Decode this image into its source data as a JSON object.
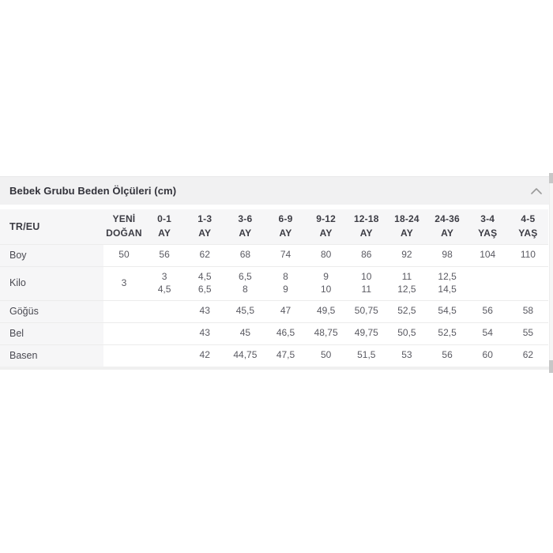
{
  "accordion": {
    "title": "Bebek Grubu Beden Ölçüleri (cm)",
    "state": "expanded",
    "chevron_icon": "chevron-up"
  },
  "table": {
    "corner_label": "TR/EU",
    "columns": [
      "YENİ\nDOĞAN",
      "0-1\nAY",
      "1-3\nAY",
      "3-6\nAY",
      "6-9\nAY",
      "9-12\nAY",
      "12-18\nAY",
      "18-24\nAY",
      "24-36\nAY",
      "3-4\nYAŞ",
      "4-5\nYAŞ"
    ],
    "rows": [
      {
        "label": "Boy",
        "values": [
          "50",
          "56",
          "62",
          "68",
          "74",
          "80",
          "86",
          "92",
          "98",
          "104",
          "110"
        ]
      },
      {
        "label": "Kilo",
        "values": [
          "3",
          "3\n4,5",
          "4,5\n6,5",
          "6,5\n8",
          "8\n9",
          "9\n10",
          "10\n11",
          "11\n12,5",
          "12,5\n14,5",
          "",
          ""
        ]
      },
      {
        "label": "Göğüs",
        "values": [
          "",
          "",
          "43",
          "45,5",
          "47",
          "49,5",
          "50,75",
          "52,5",
          "54,5",
          "56",
          "58"
        ]
      },
      {
        "label": "Bel",
        "values": [
          "",
          "",
          "43",
          "45",
          "46,5",
          "48,75",
          "49,75",
          "50,5",
          "52,5",
          "54",
          "55"
        ]
      },
      {
        "label": "Basen",
        "values": [
          "",
          "",
          "42",
          "44,75",
          "47,5",
          "50",
          "51,5",
          "53",
          "56",
          "60",
          "62"
        ]
      }
    ]
  },
  "colors": {
    "accordion_header_bg": "#f1f1f2",
    "table_header_bg": "#f6f6f7",
    "row_separator": "#ececec",
    "title_text": "#32323a",
    "data_text": "#5a5a62",
    "chevron": "#9a9a9a",
    "scrollbar_thumb": "#c7c7c7"
  }
}
